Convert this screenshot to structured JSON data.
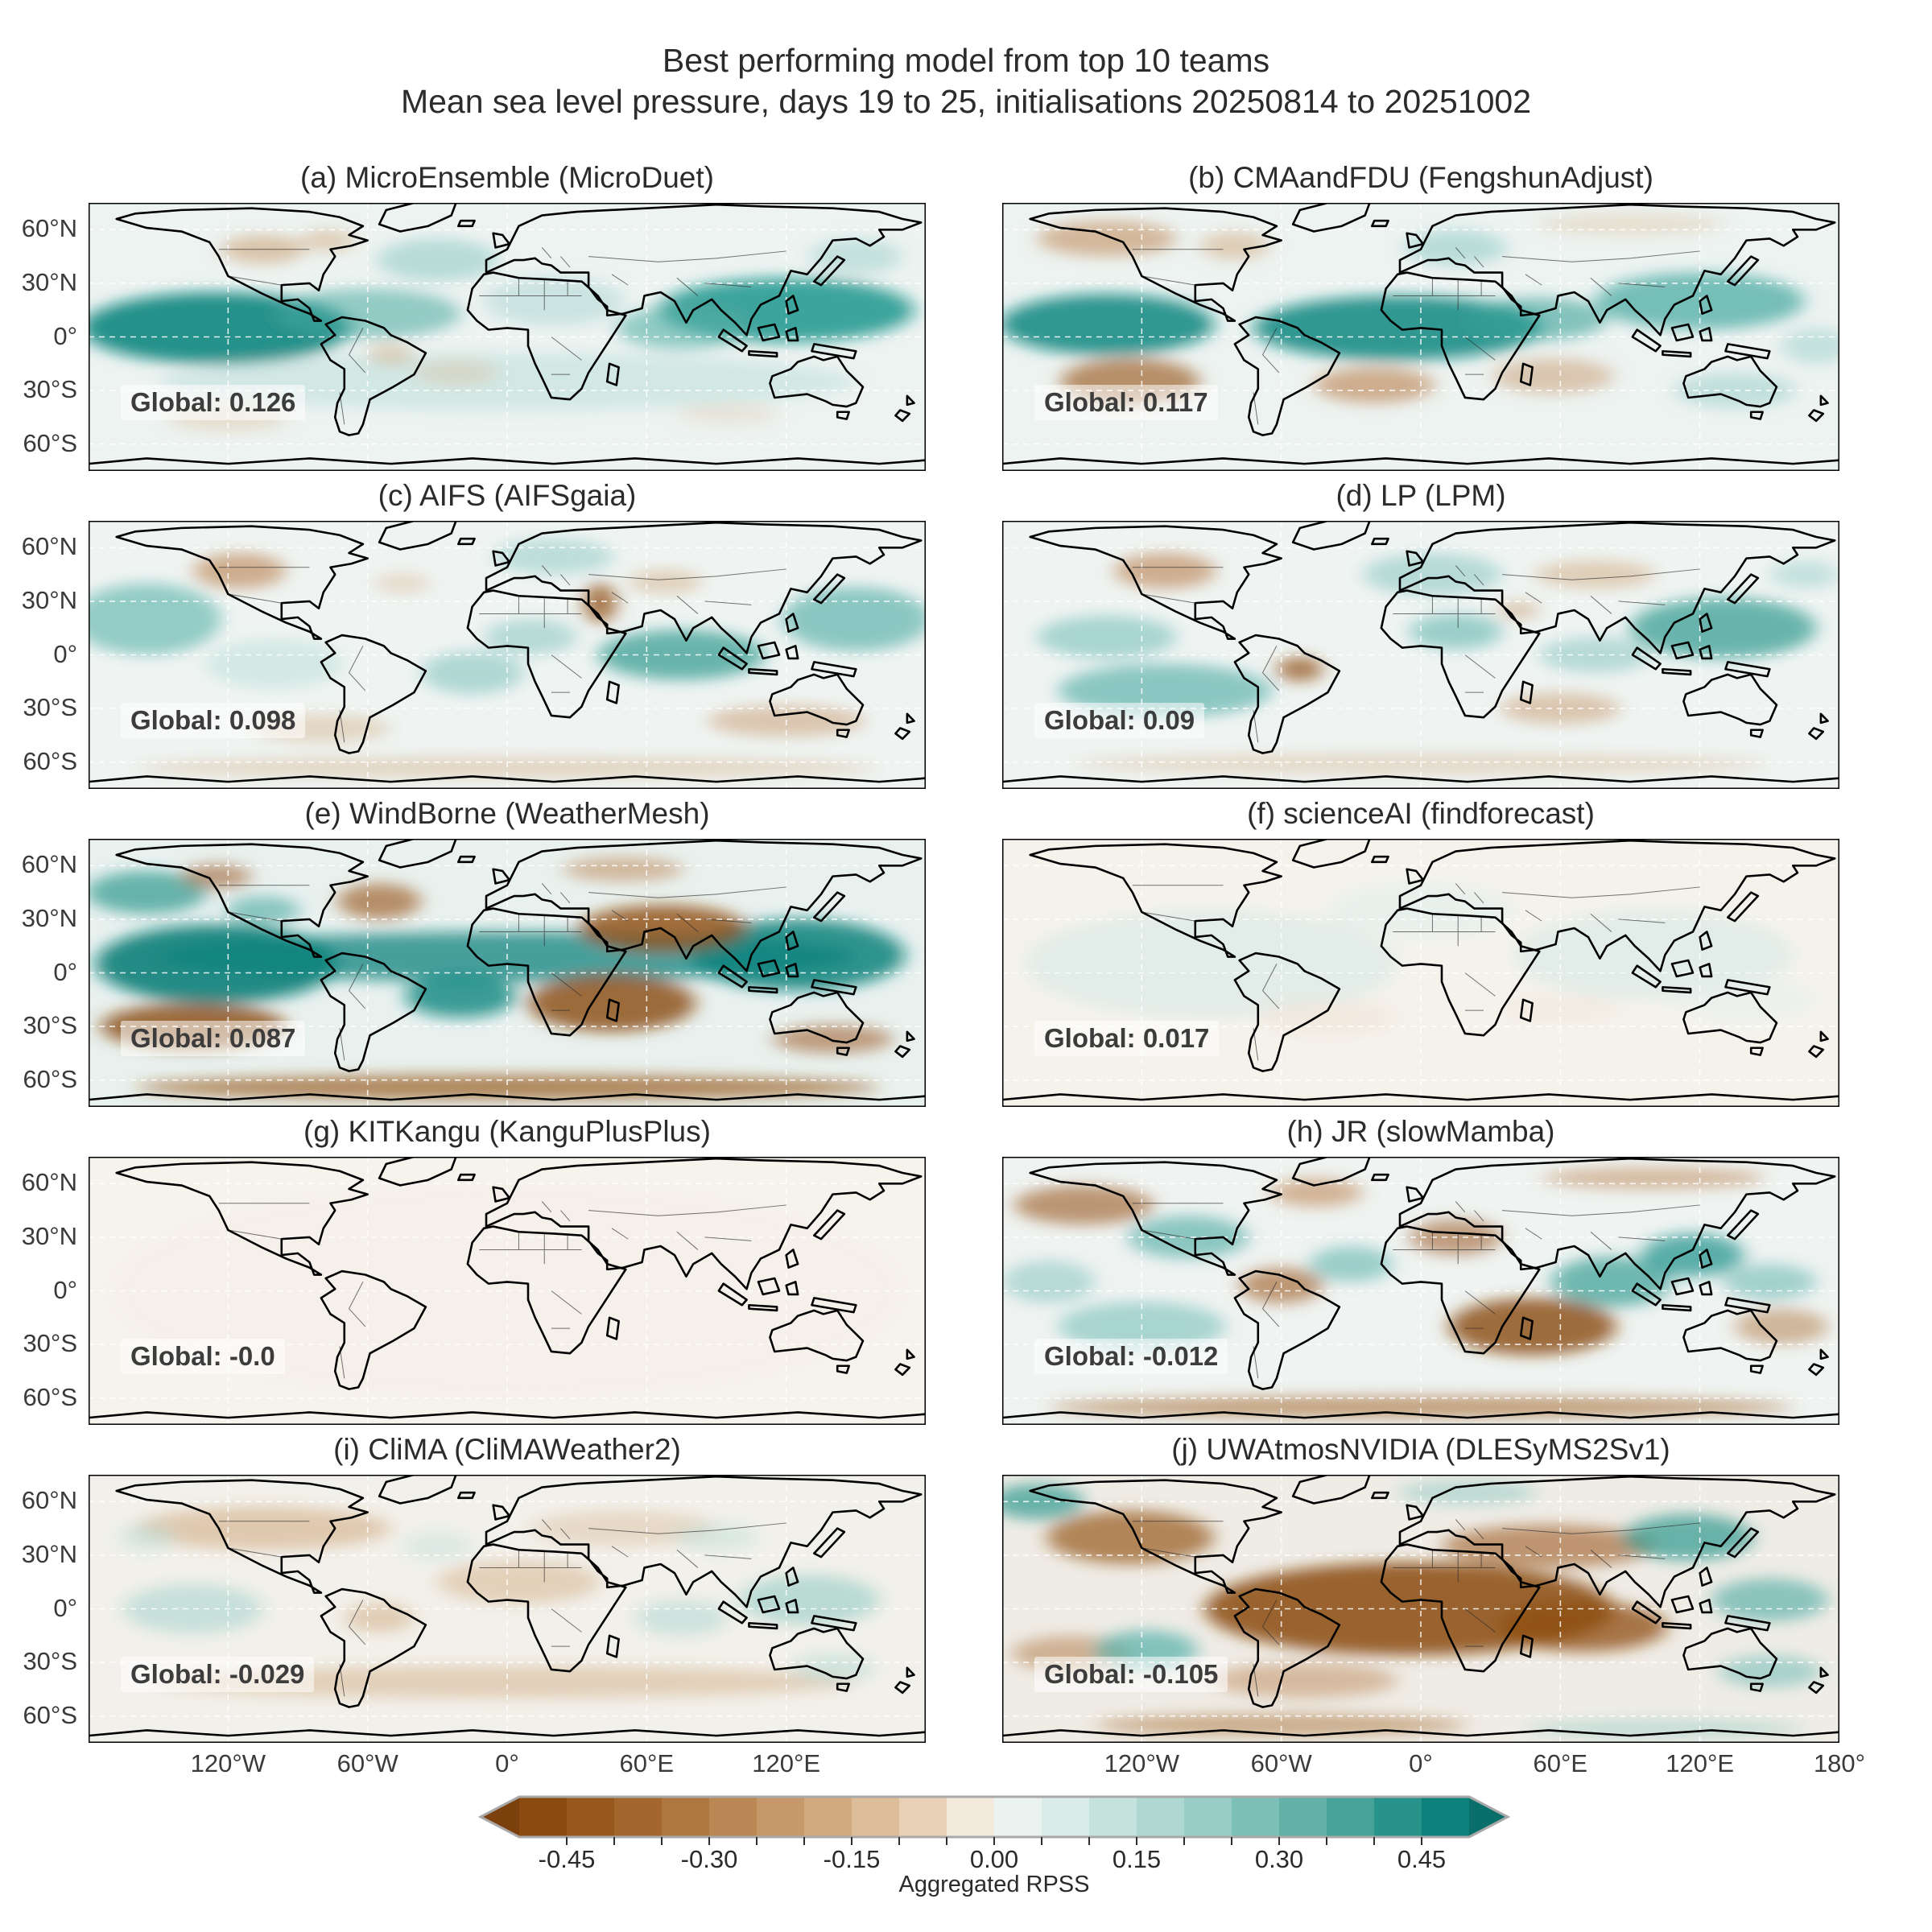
{
  "figure": {
    "title_line1": "Best performing model from top 10 teams",
    "title_line2": "Mean sea level pressure, days 19 to 25, initialisations 20250814 to 20251002"
  },
  "axes": {
    "lat_ticks": [
      {
        "label": "60°N",
        "lat": 60
      },
      {
        "label": "30°N",
        "lat": 30
      },
      {
        "label": "0°",
        "lat": 0
      },
      {
        "label": "30°S",
        "lat": -30
      },
      {
        "label": "60°S",
        "lat": -60
      }
    ],
    "lon_ticks": [
      {
        "label": "120°W",
        "lon": -120
      },
      {
        "label": "60°W",
        "lon": -60
      },
      {
        "label": "0°",
        "lon": 0
      },
      {
        "label": "60°E",
        "lon": 60
      },
      {
        "label": "120°E",
        "lon": 120
      },
      {
        "label": "180°",
        "lon": 180
      }
    ]
  },
  "colorbar": {
    "label": "Aggregated RPSS",
    "min": -0.5,
    "max": 0.5,
    "segment_step": 0.05,
    "label_values": [
      -0.45,
      -0.3,
      -0.15,
      0.0,
      0.15,
      0.3,
      0.45
    ],
    "label_texts": [
      "-0.45",
      "-0.30",
      "-0.15",
      "0.00",
      "0.15",
      "0.30",
      "0.45"
    ],
    "colors": [
      "#8a4a10",
      "#97581e",
      "#a3672e",
      "#af7740",
      "#bb8755",
      "#c79869",
      "#d2aa80",
      "#ddbc99",
      "#e8d0b5",
      "#f3e9dd",
      "#ebf3f0",
      "#d9ece8",
      "#c5e2dd",
      "#afd8d2",
      "#97cdc6",
      "#7dc0b8",
      "#62b2a9",
      "#45a399",
      "#28938a",
      "#0d827c"
    ],
    "extend_left_color": "#7c400c",
    "extend_right_color": "#0a6f6a"
  },
  "chart_data": {
    "type": "heatmap",
    "subtype": "global-map-grid",
    "variable": "Mean sea level pressure",
    "metric": "Aggregated RPSS",
    "lead_days": "19 to 25",
    "initialisations": "20250814 to 20251002",
    "value_range": [
      -0.5,
      0.5
    ],
    "grid": {
      "rows": 5,
      "cols": 2
    },
    "panels": [
      {
        "label": "(a)",
        "team": "MicroEnsemble",
        "model": "MicroDuet",
        "title": "(a) MicroEnsemble (MicroDuet)",
        "global_text": "Global: 0.126",
        "global_value": 0.126,
        "base": "#edf3f1",
        "field": [
          [
            55,
            70,
            58,
            20,
            "#0e8680",
            0.9
          ],
          [
            120,
            62,
            40,
            14,
            "#49a8a1",
            0.55
          ],
          [
            300,
            60,
            55,
            18,
            "#129088",
            0.8
          ],
          [
            255,
            70,
            28,
            12,
            "#55b0a9",
            0.6
          ],
          [
            150,
            32,
            26,
            12,
            "#8cc8c2",
            0.55
          ],
          [
            200,
            55,
            30,
            14,
            "#a9d6d1",
            0.5
          ],
          [
            180,
            100,
            150,
            16,
            "#abd6d1",
            0.4
          ],
          [
            75,
            26,
            18,
            8,
            "#c99c70",
            0.55
          ],
          [
            103,
            21,
            12,
            6,
            "#cfa87d",
            0.5
          ],
          [
            130,
            85,
            10,
            6,
            "#cfa87d",
            0.45
          ],
          [
            158,
            95,
            18,
            7,
            "#dabd9c",
            0.4
          ],
          [
            60,
            120,
            26,
            8,
            "#dabd9c",
            0.4
          ],
          [
            275,
            118,
            22,
            6,
            "#e0c8ab",
            0.35
          ],
          [
            330,
            30,
            20,
            10,
            "#9ccfc9",
            0.5
          ]
        ]
      },
      {
        "label": "(b)",
        "team": "CMAandFDU",
        "model": "FengshunAdjust",
        "title": "(b) CMAandFDU (FengshunAdjust)",
        "global_text": "Global: 0.117",
        "global_value": 0.117,
        "base": "#edf3f1",
        "field": [
          [
            45,
            68,
            46,
            17,
            "#0e8680",
            0.85
          ],
          [
            170,
            70,
            62,
            18,
            "#0e8680",
            0.85
          ],
          [
            230,
            65,
            30,
            12,
            "#3aa19a",
            0.6
          ],
          [
            300,
            55,
            45,
            16,
            "#43a69f",
            0.7
          ],
          [
            195,
            25,
            22,
            10,
            "#86c5bf",
            0.5
          ],
          [
            45,
            20,
            30,
            10,
            "#c2905f",
            0.6
          ],
          [
            100,
            24,
            15,
            8,
            "#cfa87d",
            0.5
          ],
          [
            55,
            100,
            30,
            13,
            "#a06430",
            0.7
          ],
          [
            160,
            102,
            26,
            10,
            "#b97f4c",
            0.6
          ],
          [
            237,
            97,
            26,
            10,
            "#c89a6e",
            0.5
          ],
          [
            315,
            105,
            26,
            10,
            "#8cc8c2",
            0.45
          ],
          [
            270,
            12,
            40,
            6,
            "#dabd9c",
            0.4
          ],
          [
            350,
            80,
            15,
            10,
            "#9ccfc9",
            0.5
          ]
        ]
      },
      {
        "label": "(c)",
        "team": "AIFS",
        "model": "AIFSgaia",
        "title": "(c) AIFS (AIFSgaia)",
        "global_text": "Global: 0.098",
        "global_value": 0.098,
        "base": "#eff4f2",
        "field": [
          [
            25,
            55,
            32,
            20,
            "#55b0a9",
            0.6
          ],
          [
            330,
            55,
            32,
            18,
            "#49a8a1",
            0.6
          ],
          [
            255,
            75,
            36,
            14,
            "#2d988f",
            0.7
          ],
          [
            190,
            65,
            20,
            10,
            "#7fc2bb",
            0.5
          ],
          [
            165,
            85,
            22,
            12,
            "#6fbcb5",
            0.5
          ],
          [
            200,
            20,
            26,
            10,
            "#8cc8c2",
            0.5
          ],
          [
            80,
            80,
            30,
            14,
            "#b9ddd8",
            0.5
          ],
          [
            65,
            28,
            20,
            10,
            "#b97f4c",
            0.6
          ],
          [
            135,
            35,
            12,
            6,
            "#dabd9c",
            0.45
          ],
          [
            220,
            46,
            7,
            11,
            "#96581f",
            0.8
          ],
          [
            248,
            34,
            16,
            7,
            "#cfa87d",
            0.45
          ],
          [
            300,
            112,
            34,
            9,
            "#c89a6e",
            0.5
          ],
          [
            100,
            116,
            30,
            8,
            "#d3b18a",
            0.45
          ],
          [
            180,
            138,
            160,
            6,
            "#cfa87d",
            0.4
          ]
        ]
      },
      {
        "label": "(d)",
        "team": "LP",
        "model": "LPM",
        "title": "(d) LP (LPM)",
        "global_text": "Global: 0.09",
        "global_value": 0.09,
        "base": "#eff4f2",
        "field": [
          [
            70,
            95,
            46,
            15,
            "#49a8a1",
            0.6
          ],
          [
            45,
            65,
            30,
            12,
            "#6fbcb5",
            0.55
          ],
          [
            310,
            60,
            40,
            17,
            "#2d988f",
            0.7
          ],
          [
            185,
            30,
            30,
            12,
            "#7fc2bb",
            0.5
          ],
          [
            195,
            62,
            20,
            10,
            "#55b0a9",
            0.55
          ],
          [
            255,
            75,
            24,
            10,
            "#7fc2bb",
            0.5
          ],
          [
            70,
            28,
            22,
            10,
            "#b97f4c",
            0.6
          ],
          [
            128,
            83,
            10,
            7,
            "#96581f",
            0.75
          ],
          [
            255,
            30,
            26,
            8,
            "#cfa87d",
            0.5
          ],
          [
            222,
            50,
            9,
            5,
            "#c89a6e",
            0.5
          ],
          [
            240,
            105,
            26,
            9,
            "#c89a6e",
            0.5
          ],
          [
            180,
            136,
            150,
            6,
            "#d3b18a",
            0.4
          ],
          [
            345,
            30,
            15,
            8,
            "#9ccfc9",
            0.5
          ]
        ]
      },
      {
        "label": "(e)",
        "team": "WindBorne",
        "model": "WeatherMesh",
        "title": "(e) WindBorne (WeatherMesh)",
        "global_text": "Global: 0.087",
        "global_value": 0.087,
        "base": "#e9f1ef",
        "field": [
          [
            55,
            70,
            52,
            22,
            "#0a7f79",
            0.9
          ],
          [
            180,
            66,
            150,
            14,
            "#0c837d",
            0.75
          ],
          [
            305,
            65,
            46,
            20,
            "#0c837d",
            0.85
          ],
          [
            160,
            88,
            24,
            12,
            "#11877f",
            0.8
          ],
          [
            25,
            30,
            26,
            12,
            "#2d988f",
            0.7
          ],
          [
            75,
            40,
            16,
            8,
            "#49a8a1",
            0.6
          ],
          [
            45,
            105,
            40,
            13,
            "#8a4a10",
            0.8
          ],
          [
            225,
            92,
            36,
            16,
            "#8a4a10",
            0.8
          ],
          [
            247,
            50,
            36,
            13,
            "#8f4e12",
            0.8
          ],
          [
            125,
            35,
            18,
            10,
            "#a06430",
            0.7
          ],
          [
            55,
            21,
            15,
            7,
            "#a06430",
            0.6
          ],
          [
            230,
            17,
            26,
            7,
            "#b97f4c",
            0.5
          ],
          [
            320,
            112,
            26,
            8,
            "#a06430",
            0.6
          ],
          [
            180,
            139,
            160,
            7,
            "#97581e",
            0.7
          ]
        ]
      },
      {
        "label": "(f)",
        "team": "scienceAI",
        "model": "findforecast",
        "title": "(f) scienceAI (findforecast)",
        "global_text": "Global: 0.017",
        "global_value": 0.017,
        "base": "#f5f2ec",
        "field": [
          [
            90,
            70,
            80,
            30,
            "#ddebe7",
            0.8
          ],
          [
            280,
            65,
            60,
            25,
            "#ddebe7",
            0.8
          ],
          [
            180,
            40,
            40,
            15,
            "#e3efec",
            0.7
          ],
          [
            140,
            100,
            30,
            10,
            "#f0e5d7",
            0.6
          ],
          [
            240,
            95,
            25,
            8,
            "#f0e5d7",
            0.5
          ],
          [
            320,
            90,
            30,
            12,
            "#e6f0ed",
            0.6
          ]
        ]
      },
      {
        "label": "(g)",
        "team": "KITKangu",
        "model": "KanguPlusPlus",
        "title": "(g) KITKangu (KanguPlusPlus)",
        "global_text": "Global: -0.0",
        "global_value": -0.0,
        "base": "#f6f2ec",
        "field": [
          [
            180,
            75,
            170,
            60,
            "#f4efe8",
            0.6
          ]
        ]
      },
      {
        "label": "(h)",
        "team": "JR",
        "model": "slowMamba",
        "title": "(h) JR (slowMamba)",
        "global_text": "Global: -0.012",
        "global_value": -0.012,
        "base": "#eff3f1",
        "field": [
          [
            80,
            45,
            26,
            12,
            "#49a8a1",
            0.6
          ],
          [
            150,
            60,
            18,
            10,
            "#55b0a9",
            0.55
          ],
          [
            262,
            70,
            26,
            14,
            "#2d988f",
            0.65
          ],
          [
            297,
            55,
            22,
            12,
            "#17908a",
            0.7
          ],
          [
            60,
            95,
            36,
            14,
            "#6fbcb5",
            0.55
          ],
          [
            20,
            70,
            20,
            12,
            "#7fc2bb",
            0.5
          ],
          [
            330,
            70,
            20,
            10,
            "#55b0a9",
            0.5
          ],
          [
            35,
            27,
            30,
            11,
            "#a06430",
            0.65
          ],
          [
            135,
            20,
            20,
            8,
            "#b97f4c",
            0.55
          ],
          [
            195,
            45,
            20,
            10,
            "#a06430",
            0.6
          ],
          [
            120,
            72,
            18,
            10,
            "#a3672e",
            0.65
          ],
          [
            228,
            95,
            36,
            16,
            "#8a4a10",
            0.8
          ],
          [
            335,
            95,
            20,
            10,
            "#af7740",
            0.5
          ],
          [
            280,
            12,
            48,
            6,
            "#b97f4c",
            0.5
          ],
          [
            180,
            140,
            160,
            6,
            "#a3672e",
            0.6
          ]
        ]
      },
      {
        "label": "(i)",
        "team": "CliMA",
        "model": "CliMAWeather2",
        "title": "(i) CliMA (CliMAWeather2)",
        "global_text": "Global: -0.029",
        "global_value": -0.029,
        "base": "#f2f0ea",
        "field": [
          [
            75,
            30,
            55,
            12,
            "#cfa87d",
            0.55
          ],
          [
            230,
            30,
            40,
            10,
            "#dabd9c",
            0.45
          ],
          [
            185,
            60,
            35,
            12,
            "#d3b18a",
            0.5
          ],
          [
            125,
            80,
            15,
            8,
            "#cfa87d",
            0.5
          ],
          [
            180,
            116,
            150,
            9,
            "#cfa87d",
            0.45
          ],
          [
            45,
            75,
            30,
            14,
            "#abd6d1",
            0.6
          ],
          [
            310,
            70,
            30,
            14,
            "#8cc8c2",
            0.55
          ],
          [
            255,
            80,
            20,
            10,
            "#abd6d1",
            0.5
          ],
          [
            25,
            35,
            12,
            8,
            "#bcdfda",
            0.5
          ],
          [
            320,
            108,
            18,
            8,
            "#abd6d1",
            0.45
          ],
          [
            270,
            35,
            18,
            8,
            "#bcdfda",
            0.45
          ],
          [
            150,
            40,
            15,
            8,
            "#bcdfda",
            0.4
          ]
        ]
      },
      {
        "label": "(j)",
        "team": "UWAtmosNVIDIA",
        "model": "DLESyMS2Sv1",
        "title": "(j) UWAtmosNVIDIA (DLESyMS2Sv1)",
        "global_text": "Global: -0.105",
        "global_value": -0.105,
        "base": "#efece6",
        "field": [
          [
            175,
            75,
            88,
            26,
            "#8a4a10",
            0.85
          ],
          [
            250,
            85,
            36,
            14,
            "#8f4e12",
            0.75
          ],
          [
            55,
            35,
            36,
            15,
            "#97581e",
            0.7
          ],
          [
            235,
            40,
            46,
            12,
            "#a3672e",
            0.65
          ],
          [
            30,
            100,
            26,
            10,
            "#af7740",
            0.5
          ],
          [
            130,
            115,
            40,
            10,
            "#b97f4c",
            0.45
          ],
          [
            15,
            15,
            20,
            10,
            "#2d988f",
            0.7
          ],
          [
            295,
            35,
            28,
            13,
            "#2d988f",
            0.7
          ],
          [
            330,
            70,
            25,
            12,
            "#49a8a1",
            0.6
          ],
          [
            62,
            98,
            22,
            11,
            "#55b0a9",
            0.7
          ],
          [
            330,
            110,
            22,
            9,
            "#6fbcb5",
            0.55
          ],
          [
            200,
            10,
            30,
            7,
            "#8cc8c2",
            0.5
          ],
          [
            120,
            140,
            80,
            6,
            "#a3672e",
            0.5
          ],
          [
            285,
            142,
            60,
            5,
            "#7fc2bb",
            0.4
          ]
        ]
      }
    ]
  }
}
